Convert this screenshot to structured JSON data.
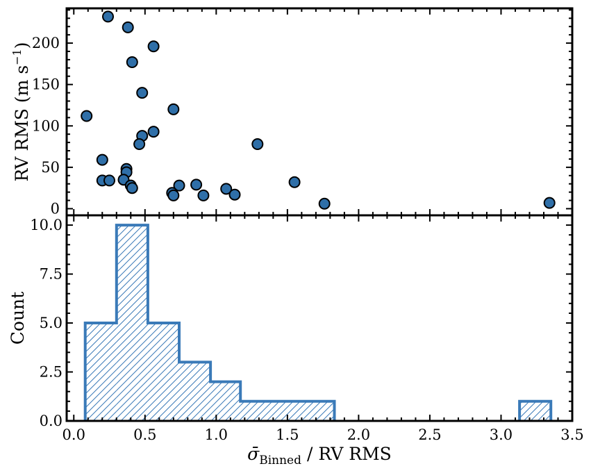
{
  "chart_data": [
    {
      "type": "scatter",
      "panel": "top",
      "ylabel_main": "RV RMS (m s",
      "ylabel_sup": "−1",
      "ylabel_end": ")",
      "xlim": [
        -0.05,
        3.5
      ],
      "ylim": [
        -8,
        242
      ],
      "yticks": [
        0,
        50,
        100,
        150,
        200
      ],
      "grid": false,
      "marker_color": "#2f6fa8",
      "series": [
        {
          "x": [
            0.24,
            0.38,
            0.56,
            0.41,
            0.48,
            0.7,
            0.09,
            0.56,
            0.48,
            0.46,
            0.2,
            0.37,
            0.37,
            0.2,
            0.25,
            0.35,
            0.4,
            0.41,
            0.74,
            0.86,
            0.69,
            0.7,
            0.91,
            1.07,
            1.13,
            1.29,
            1.55,
            1.76,
            3.34
          ],
          "y": [
            232,
            219,
            196,
            177,
            140,
            120,
            112,
            93,
            88,
            78,
            59,
            48,
            44,
            34,
            34,
            35,
            28,
            25,
            28,
            29,
            19,
            16,
            16,
            24,
            17,
            78,
            32,
            6,
            7
          ]
        }
      ]
    },
    {
      "type": "bar",
      "panel": "bottom",
      "style": "step-histogram-hatched",
      "ylabel": "Count",
      "xlabel_main": "σ̄",
      "xlabel_sub": "Binned",
      "xlabel_end": " / RV RMS",
      "xlim": [
        -0.05,
        3.5
      ],
      "ylim": [
        0,
        10.5
      ],
      "xticks": [
        0.0,
        0.5,
        1.0,
        1.5,
        2.0,
        2.5,
        3.0,
        3.5
      ],
      "xtick_labels": [
        "0.0",
        "0.5",
        "1.0",
        "1.5",
        "2.0",
        "2.5",
        "3.0",
        "3.5"
      ],
      "yticks": [
        0.0,
        2.5,
        5.0,
        7.5,
        10.0
      ],
      "ytick_labels": [
        "0.0",
        "2.5",
        "5.0",
        "7.5",
        "10.0"
      ],
      "grid": false,
      "edge_color": "#3a7ab8",
      "bin_edges": [
        0.08,
        0.3,
        0.52,
        0.74,
        0.96,
        1.17,
        1.39,
        1.61,
        1.83,
        2.04,
        2.26,
        2.48,
        2.7,
        2.91,
        3.13,
        3.35
      ],
      "counts": [
        5,
        10,
        5,
        3,
        2,
        1,
        1,
        1,
        0,
        0,
        0,
        0,
        0,
        0,
        1
      ]
    }
  ]
}
